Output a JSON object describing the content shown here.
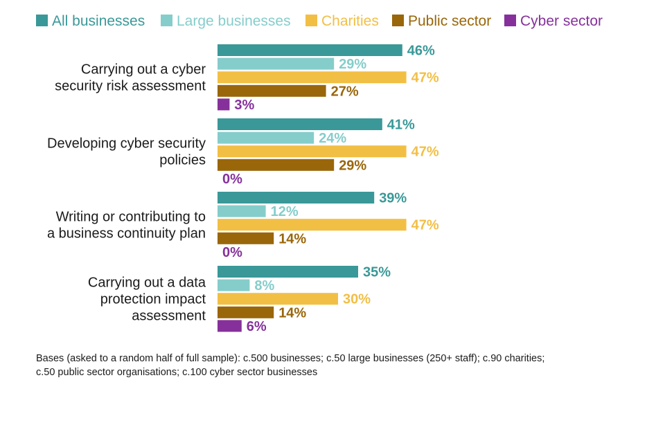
{
  "colors": {
    "all_businesses": "#3a9898",
    "large_businesses": "#85cdcb",
    "charities": "#f2bf45",
    "public_sector": "#99660a",
    "cyber_sector": "#86319b"
  },
  "chart_data": {
    "type": "bar",
    "orientation": "horizontal",
    "title": "",
    "xlabel": "",
    "ylabel": "",
    "xlim": [
      0,
      100
    ],
    "grid": false,
    "legend_position": "top",
    "categories": [
      [
        "Carrying out a cyber",
        "security risk assessment"
      ],
      [
        "Developing cyber security",
        "policies"
      ],
      [
        "Writing or contributing to",
        "a business continuity plan"
      ],
      [
        "Carrying out a data",
        "protection impact",
        "assessment"
      ]
    ],
    "series": [
      {
        "name": "All businesses",
        "color": "#3a9898",
        "values": [
          46,
          41,
          39,
          35
        ],
        "labels": [
          "46%",
          "41%",
          "39%",
          "35%"
        ]
      },
      {
        "name": "Large businesses",
        "color": "#85cdcb",
        "values": [
          29,
          24,
          12,
          8
        ],
        "labels": [
          "29%",
          "24%",
          "12%",
          "8%"
        ]
      },
      {
        "name": "Charities",
        "color": "#f2bf45",
        "values": [
          47,
          47,
          47,
          30
        ],
        "labels": [
          "47%",
          "47%",
          "47%",
          "30%"
        ]
      },
      {
        "name": "Public sector",
        "color": "#99660a",
        "values": [
          27,
          29,
          14,
          14
        ],
        "labels": [
          "27%",
          "29%",
          "14%",
          "14%"
        ]
      },
      {
        "name": "Cyber sector",
        "color": "#86319b",
        "values": [
          3,
          0,
          0,
          6
        ],
        "labels": [
          "3%",
          "0%",
          "0%",
          "6%"
        ]
      }
    ]
  },
  "footnote": {
    "line1": "Bases (asked to a random half of full sample): c.500 businesses; c.50 large businesses (250+ staff); c.90 charities;",
    "line2": "c.50 public sector organisations; c.100 cyber sector businesses"
  }
}
